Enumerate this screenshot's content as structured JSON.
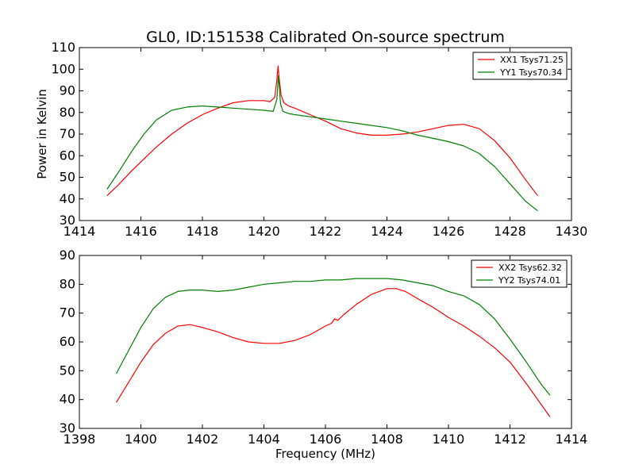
{
  "figure_title": "GL0, ID:151538 Calibrated On-source spectrum",
  "colors": {
    "xx": "#ff0000",
    "yy": "#008000",
    "axes": "#000000",
    "background": "#ffffff"
  },
  "chart_data": [
    {
      "type": "line",
      "title": "GL0, ID:151538 Calibrated On-source spectrum",
      "xlabel": "",
      "ylabel": "Power in Kelvin",
      "xlim": [
        1414,
        1430
      ],
      "ylim": [
        30,
        110
      ],
      "xticks": [
        1414,
        1416,
        1418,
        1420,
        1422,
        1424,
        1426,
        1428,
        1430
      ],
      "yticks": [
        30,
        40,
        50,
        60,
        70,
        80,
        90,
        100,
        110
      ],
      "legend_position": "top-right",
      "series": [
        {
          "name": "XX1 Tsys71.25",
          "color": "#ff0000",
          "x": [
            1414.9,
            1415.3,
            1415.7,
            1416.1,
            1416.5,
            1417.0,
            1417.5,
            1418.0,
            1418.5,
            1419.0,
            1419.5,
            1420.0,
            1420.2,
            1420.35,
            1420.42,
            1420.46,
            1420.5,
            1420.56,
            1420.65,
            1420.8,
            1421.0,
            1421.5,
            1422.0,
            1422.5,
            1423.0,
            1423.5,
            1424.0,
            1424.5,
            1425.0,
            1425.5,
            1426.0,
            1426.5,
            1427.0,
            1427.5,
            1428.0,
            1428.5,
            1428.9
          ],
          "values": [
            41.5,
            47,
            53,
            58.5,
            64,
            70,
            75,
            79,
            82,
            84.5,
            85.5,
            85.5,
            85,
            87,
            95,
            101.5,
            95,
            88,
            84.5,
            83,
            82,
            79,
            76,
            72.5,
            70.5,
            69.5,
            69.5,
            70,
            71,
            72.5,
            74,
            74.5,
            72.5,
            67,
            59,
            49,
            41.5
          ]
        },
        {
          "name": "YY1 Tsys70.34",
          "color": "#008000",
          "x": [
            1414.9,
            1415.3,
            1415.7,
            1416.1,
            1416.5,
            1417.0,
            1417.5,
            1418.0,
            1418.5,
            1419.0,
            1419.5,
            1420.0,
            1420.3,
            1420.42,
            1420.47,
            1420.5,
            1420.54,
            1420.62,
            1420.8,
            1421.0,
            1421.5,
            1422.0,
            1422.5,
            1423.0,
            1423.5,
            1424.0,
            1424.5,
            1425.0,
            1425.5,
            1426.0,
            1426.5,
            1427.0,
            1427.5,
            1428.0,
            1428.5,
            1428.9
          ],
          "values": [
            44.5,
            53,
            62,
            70,
            76.5,
            81,
            82.5,
            83,
            82.5,
            82,
            81.5,
            81,
            80.5,
            86,
            97,
            92,
            84,
            80.5,
            79.5,
            79,
            78,
            77,
            76,
            75,
            74,
            73,
            71.5,
            69.5,
            68,
            66.5,
            64.5,
            61,
            55,
            47,
            39,
            34.5
          ]
        }
      ]
    },
    {
      "type": "line",
      "title": "",
      "xlabel": "Frequency (MHz)",
      "ylabel": "",
      "xlim": [
        1398,
        1414
      ],
      "ylim": [
        30,
        90
      ],
      "xticks": [
        1398,
        1400,
        1402,
        1404,
        1406,
        1408,
        1410,
        1412,
        1414
      ],
      "yticks": [
        30,
        40,
        50,
        60,
        70,
        80,
        90
      ],
      "legend_position": "top-right",
      "series": [
        {
          "name": "XX2 Tsys62.32",
          "color": "#ff0000",
          "x": [
            1399.2,
            1399.6,
            1400.0,
            1400.4,
            1400.8,
            1401.2,
            1401.6,
            1402.0,
            1402.5,
            1403.0,
            1403.5,
            1404.0,
            1404.5,
            1405.0,
            1405.5,
            1406.0,
            1406.2,
            1406.3,
            1406.4,
            1406.6,
            1407.0,
            1407.5,
            1408.0,
            1408.3,
            1408.6,
            1409.0,
            1409.5,
            1410.0,
            1410.5,
            1411.0,
            1411.5,
            1412.0,
            1412.5,
            1413.0,
            1413.3
          ],
          "values": [
            39,
            46,
            53,
            59,
            63,
            65.5,
            66,
            65,
            63.5,
            61.5,
            60,
            59.5,
            59.5,
            60.5,
            62.5,
            65.5,
            66.5,
            68,
            67.5,
            69.5,
            73,
            76.5,
            78.5,
            78.5,
            77.5,
            75,
            72,
            68.5,
            65.5,
            62,
            58,
            53,
            46,
            38.5,
            34
          ]
        },
        {
          "name": "YY2 Tsys74.01",
          "color": "#008000",
          "x": [
            1399.2,
            1399.6,
            1400.0,
            1400.4,
            1400.8,
            1401.2,
            1401.6,
            1402.0,
            1402.5,
            1403.0,
            1403.5,
            1404.0,
            1404.5,
            1405.0,
            1405.5,
            1406.0,
            1406.5,
            1407.0,
            1407.5,
            1408.0,
            1408.5,
            1409.0,
            1409.5,
            1410.0,
            1410.5,
            1411.0,
            1411.5,
            1412.0,
            1412.5,
            1413.0,
            1413.3
          ],
          "values": [
            49,
            57,
            65,
            71.5,
            75.5,
            77.5,
            78,
            78,
            77.5,
            78,
            79,
            80,
            80.5,
            81,
            81,
            81.5,
            81.5,
            82,
            82,
            82,
            81.5,
            80.5,
            79.5,
            77.5,
            76,
            73,
            68,
            61,
            53.5,
            45.5,
            41.5
          ]
        }
      ]
    }
  ]
}
